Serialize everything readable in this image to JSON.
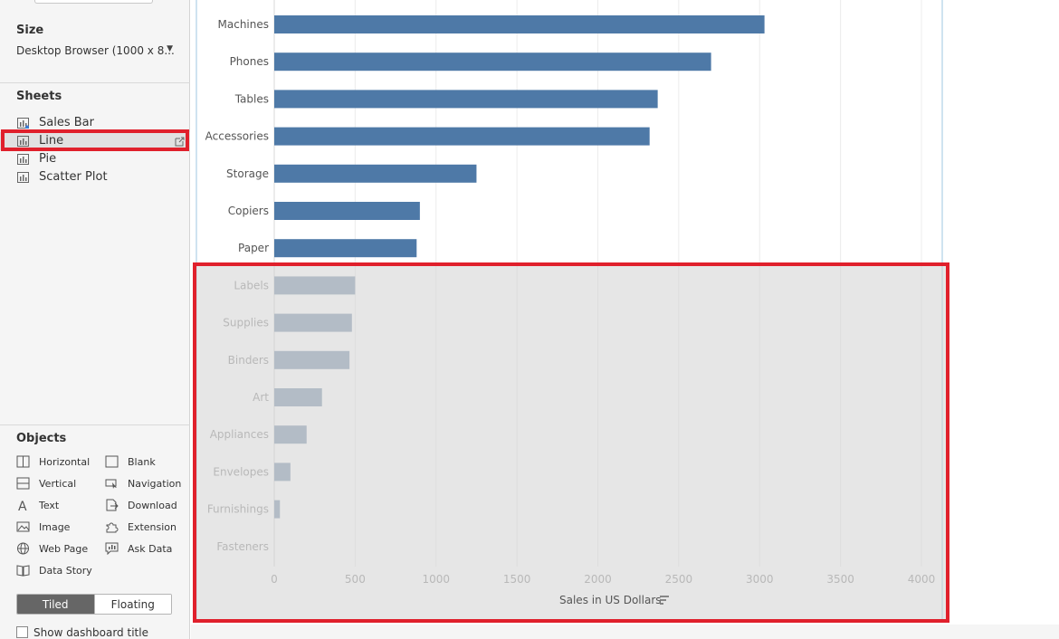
{
  "left_pane": {
    "size": {
      "heading": "Size",
      "value": "Desktop Browser (1000 x 8..."
    },
    "sheets": {
      "heading": "Sheets",
      "items": [
        {
          "label": "Sales Bar"
        },
        {
          "label": "Line"
        },
        {
          "label": "Pie"
        },
        {
          "label": "Scatter Plot"
        }
      ]
    },
    "objects": {
      "heading": "Objects",
      "items": [
        {
          "label": "Horizontal",
          "icon": "horizontal-container-icon"
        },
        {
          "label": "Blank",
          "icon": "blank-icon"
        },
        {
          "label": "Vertical",
          "icon": "vertical-container-icon"
        },
        {
          "label": "Navigation",
          "icon": "navigation-icon"
        },
        {
          "label": "Text",
          "icon": "text-icon"
        },
        {
          "label": "Download",
          "icon": "download-icon"
        },
        {
          "label": "Image",
          "icon": "image-icon"
        },
        {
          "label": "Extension",
          "icon": "extension-icon"
        },
        {
          "label": "Web Page",
          "icon": "globe-icon"
        },
        {
          "label": "Ask Data",
          "icon": "ask-data-icon"
        },
        {
          "label": "Data Story",
          "icon": "book-icon"
        }
      ]
    },
    "layout_toggle": {
      "tiled": "Tiled",
      "floating": "Floating",
      "selected": "Tiled"
    },
    "show_title_label": "Show dashboard title"
  },
  "chart_data": {
    "type": "bar",
    "orientation": "horizontal",
    "categories": [
      "Machines",
      "Phones",
      "Tables",
      "Accessories",
      "Storage",
      "Copiers",
      "Paper",
      "Labels",
      "Supplies",
      "Binders",
      "Art",
      "Appliances",
      "Envelopes",
      "Furnishings",
      "Fasteners"
    ],
    "values": [
      3030,
      2700,
      2370,
      2320,
      1250,
      900,
      880,
      500,
      480,
      465,
      295,
      200,
      100,
      35,
      0
    ],
    "xlabel": "Sales in US Dollars",
    "ylabel": "",
    "xlim": [
      0,
      4000
    ],
    "xticks": [
      0,
      500,
      1000,
      1500,
      2000,
      2500,
      3000,
      3500,
      4000
    ],
    "grid": "vertical",
    "colors": {
      "bar": "#4e79a7",
      "bar_faded": "#8fa3b9"
    }
  },
  "colors": {
    "highlight": "#e0202c",
    "frame": "#cfe3f0"
  }
}
